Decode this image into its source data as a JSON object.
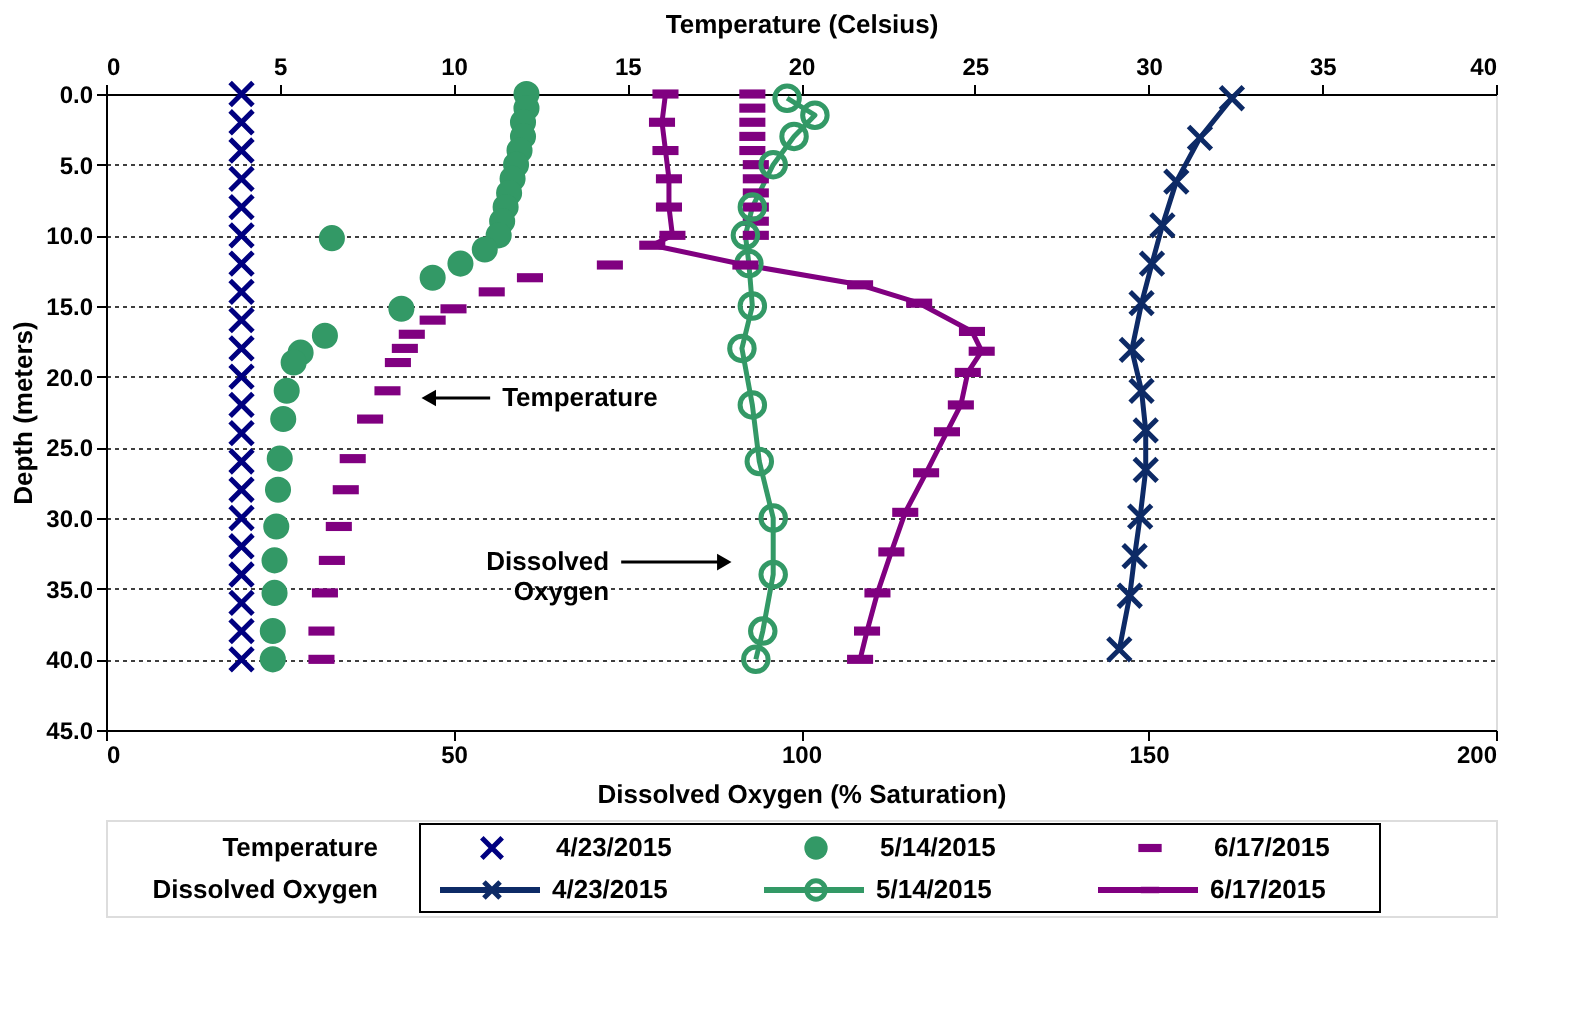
{
  "chart_data": {
    "type": "scatter",
    "xlabel": "Dissolved Oxygen (% Saturation)",
    "x2label": "Temperature (Celsius)",
    "ylabel": "Depth (meters)",
    "xlim": [
      0,
      200
    ],
    "xticks": [
      0,
      50,
      100,
      150,
      200
    ],
    "x2lim": [
      0,
      40
    ],
    "x2ticks": [
      0,
      5,
      10,
      15,
      20,
      25,
      30,
      35,
      40
    ],
    "ylim": [
      45,
      0
    ],
    "yticks": [
      {
        "value": 0,
        "label": "0.0"
      },
      {
        "value": 5,
        "label": "5.0"
      },
      {
        "value": 10,
        "label": "10.0"
      },
      {
        "value": 15,
        "label": "15.0"
      },
      {
        "value": 20,
        "label": "20.0"
      },
      {
        "value": 25,
        "label": "25.0"
      },
      {
        "value": 30,
        "label": "30.0"
      },
      {
        "value": 35,
        "label": "35.0"
      },
      {
        "value": 40,
        "label": "40.0"
      },
      {
        "value": 45,
        "label": "45.0"
      }
    ],
    "grid": "y",
    "legend": "bottom",
    "annotations": [
      "Temperature",
      "Dissolved Oxygen",
      "Temperature",
      "Dissolved\nOxygen"
    ],
    "series": [
      {
        "name": "4/23/2015",
        "axis": "x2",
        "marker": "cross",
        "color": "#000080",
        "x": [
          3.9,
          3.9,
          3.9,
          3.9,
          3.9,
          3.9,
          3.9,
          3.9,
          3.9,
          3.9,
          3.9,
          3.9,
          3.9,
          3.9,
          3.9,
          3.9,
          3.9,
          3.9,
          3.9,
          3.9,
          3.9
        ],
        "values": [
          0,
          2,
          4,
          6,
          8,
          10,
          12,
          14,
          16,
          18,
          20,
          22,
          24,
          26,
          28,
          30,
          32,
          34,
          36,
          38,
          40
        ]
      },
      {
        "name": "5/14/2015",
        "axis": "x2",
        "marker": "circle",
        "color": "#339966",
        "x": [
          12.1,
          12.1,
          12.0,
          12.0,
          11.9,
          11.8,
          11.7,
          11.6,
          11.5,
          11.4,
          11.3,
          6.5,
          10.9,
          10.2,
          9.4,
          8.5,
          6.3,
          5.6,
          5.4,
          5.2,
          5.1,
          5.0,
          4.95,
          4.9,
          4.85,
          4.85,
          4.8,
          4.8
        ],
        "values": [
          0,
          1,
          2,
          3,
          4,
          5,
          6,
          7,
          8,
          9,
          10,
          10.2,
          11,
          12,
          13,
          15.2,
          17.1,
          18.3,
          19,
          21,
          23,
          25.8,
          28,
          30.6,
          33,
          35.3,
          38,
          40
        ]
      },
      {
        "name": "6/17/2015",
        "axis": "x2",
        "marker": "square",
        "color": "#800080",
        "x": [
          18.6,
          18.6,
          18.6,
          18.6,
          18.6,
          18.7,
          18.7,
          18.7,
          18.7,
          18.7,
          18.7,
          14.5,
          12.2,
          11.1,
          10,
          9.4,
          8.8,
          8.6,
          8.4,
          8.1,
          7.6,
          7.1,
          6.9,
          6.7,
          6.5,
          6.3,
          6.2,
          6.2
        ],
        "values": [
          0,
          1,
          2,
          3,
          4,
          5,
          6,
          7,
          8,
          9,
          10,
          12.1,
          13,
          14,
          15.2,
          16,
          17,
          18,
          19,
          21,
          23,
          25.8,
          28,
          30.6,
          33,
          35.3,
          38,
          40
        ]
      },
      {
        "name": "4/23/2015",
        "type": "line",
        "marker": "cross",
        "color": "#0d2a66",
        "x": [
          162,
          157.4,
          154,
          152,
          150.5,
          149,
          147.6,
          149,
          149.6,
          149.6,
          148.8,
          148,
          147.3,
          145.8
        ],
        "values": [
          0.3,
          3.1,
          6.2,
          9.3,
          12,
          14.8,
          18.1,
          21,
          23.8,
          26.6,
          29.9,
          32.7,
          35.5,
          39.3
        ]
      },
      {
        "name": "5/14/2015",
        "type": "line",
        "marker": "circle",
        "color": "#339966",
        "x": [
          98,
          102,
          99,
          96,
          93,
          92,
          92.5,
          93,
          91.5,
          93,
          94,
          96,
          96,
          94.5,
          93.5
        ],
        "values": [
          0.3,
          1.5,
          3,
          5,
          8,
          10,
          12,
          15,
          18,
          22,
          26,
          30,
          34,
          38,
          40
        ]
      },
      {
        "name": "6/17/2015",
        "type": "line",
        "marker": "square",
        "color": "#800080",
        "x": [
          80.5,
          80,
          80.5,
          81,
          81,
          81.5,
          78.6,
          92,
          108.5,
          117,
          124.6,
          126,
          124,
          123,
          121,
          118,
          115,
          113,
          111,
          109.5,
          108.5
        ],
        "values": [
          0,
          2,
          4,
          6,
          8,
          10,
          10.7,
          12.1,
          13.5,
          14.8,
          16.8,
          18.2,
          19.7,
          22,
          23.9,
          26.8,
          29.6,
          32.4,
          35.3,
          38,
          40
        ]
      }
    ]
  }
}
